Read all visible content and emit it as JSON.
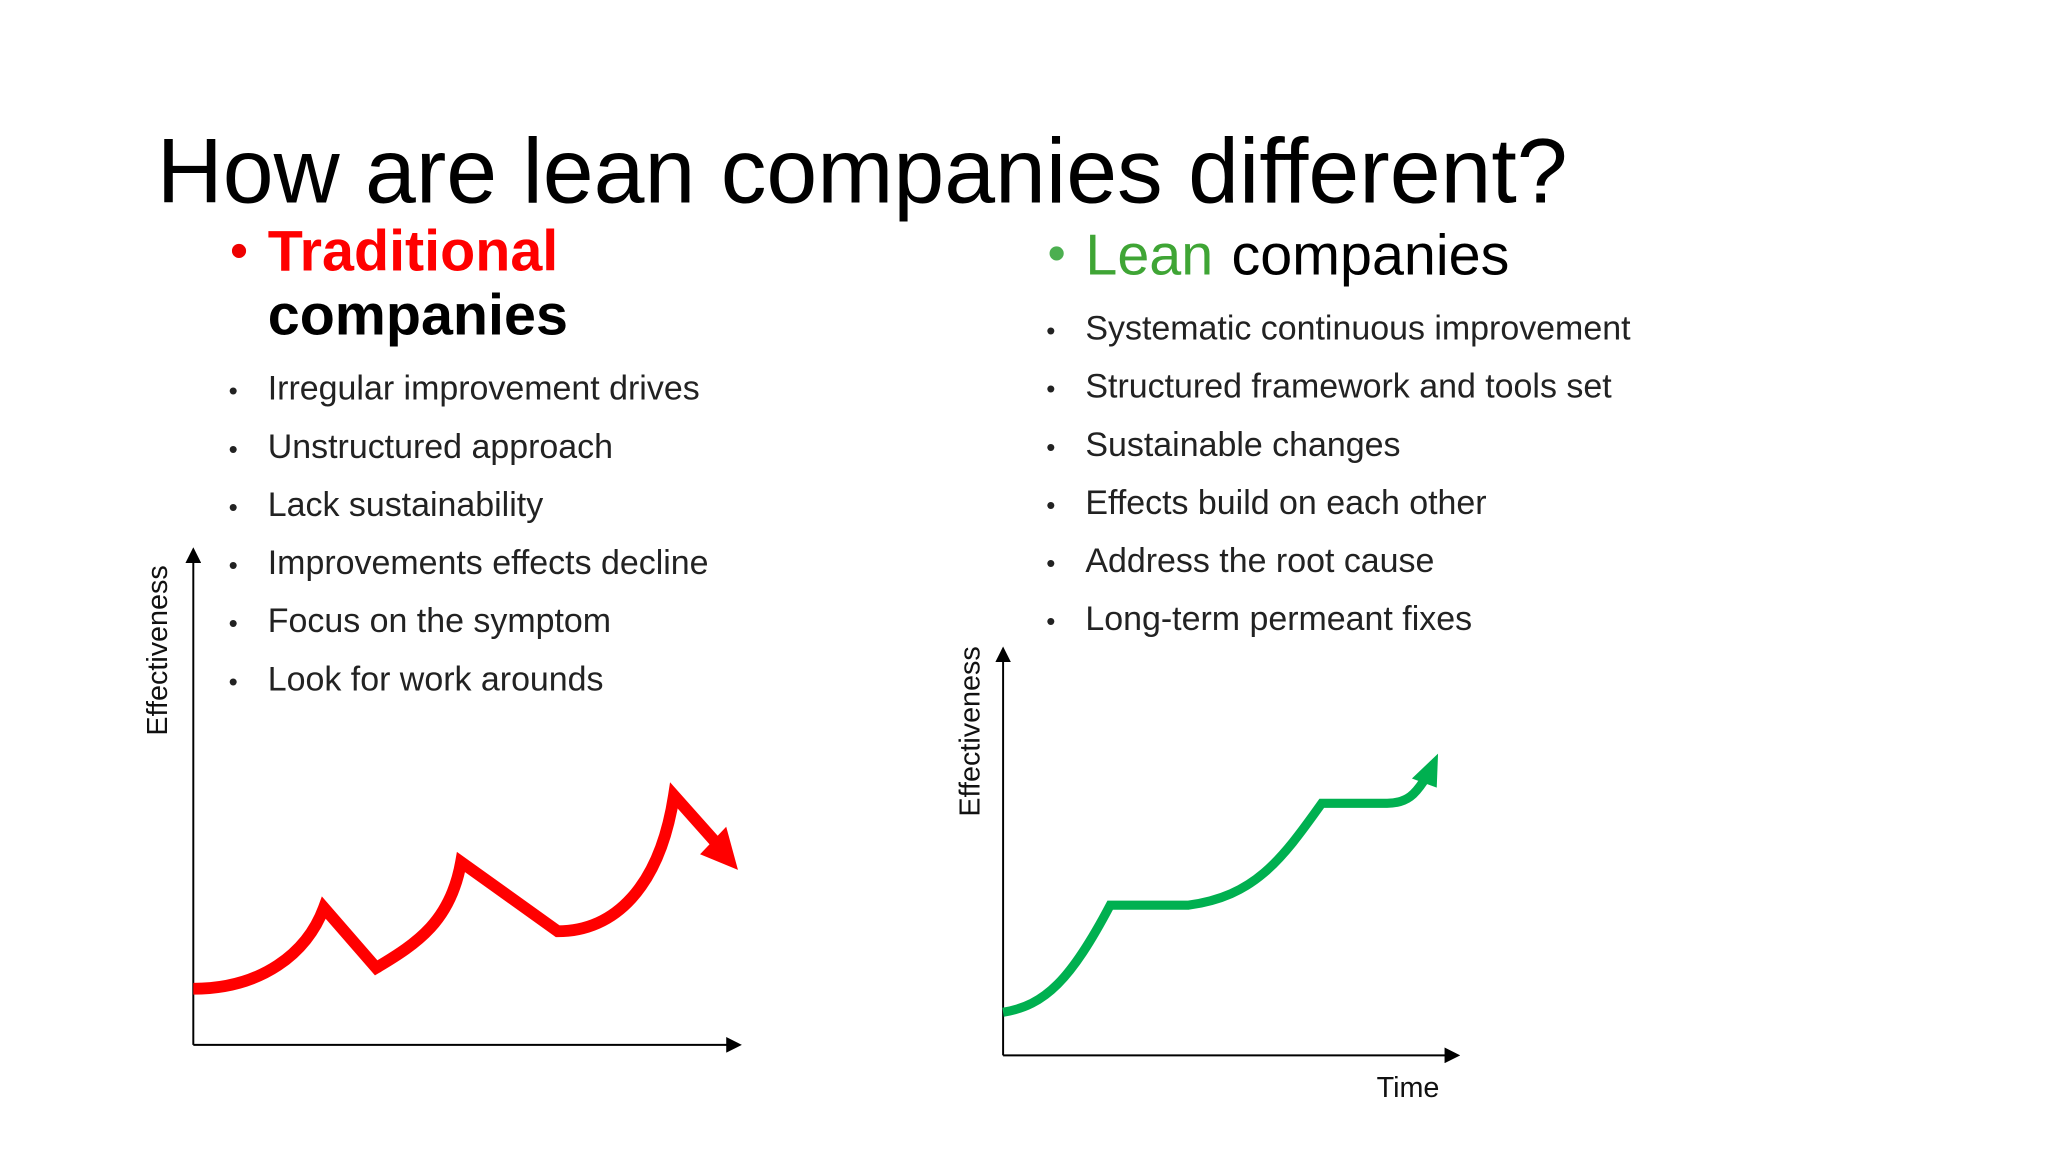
{
  "title": "How are lean companies different?",
  "traditional": {
    "heading": {
      "highlight": "Traditional",
      "rest": "companies"
    },
    "bullets": [
      "Irregular improvement drives",
      "Unstructured approach",
      "Lack sustainability",
      "Improvements effects decline",
      "Focus on the symptom",
      "Look for work arounds"
    ],
    "chart": {
      "y_label": "Effectiveness"
    }
  },
  "lean": {
    "heading": {
      "highlight": "Lean",
      "rest": "companies"
    },
    "bullets": [
      "Systematic continuous improvement",
      "Structured framework and tools set",
      "Sustainable changes",
      "Effects build on each other",
      "Address the root cause",
      "Long-term permeant fixes"
    ],
    "chart": {
      "y_label": "Effectiveness",
      "x_label": "Time"
    }
  }
}
